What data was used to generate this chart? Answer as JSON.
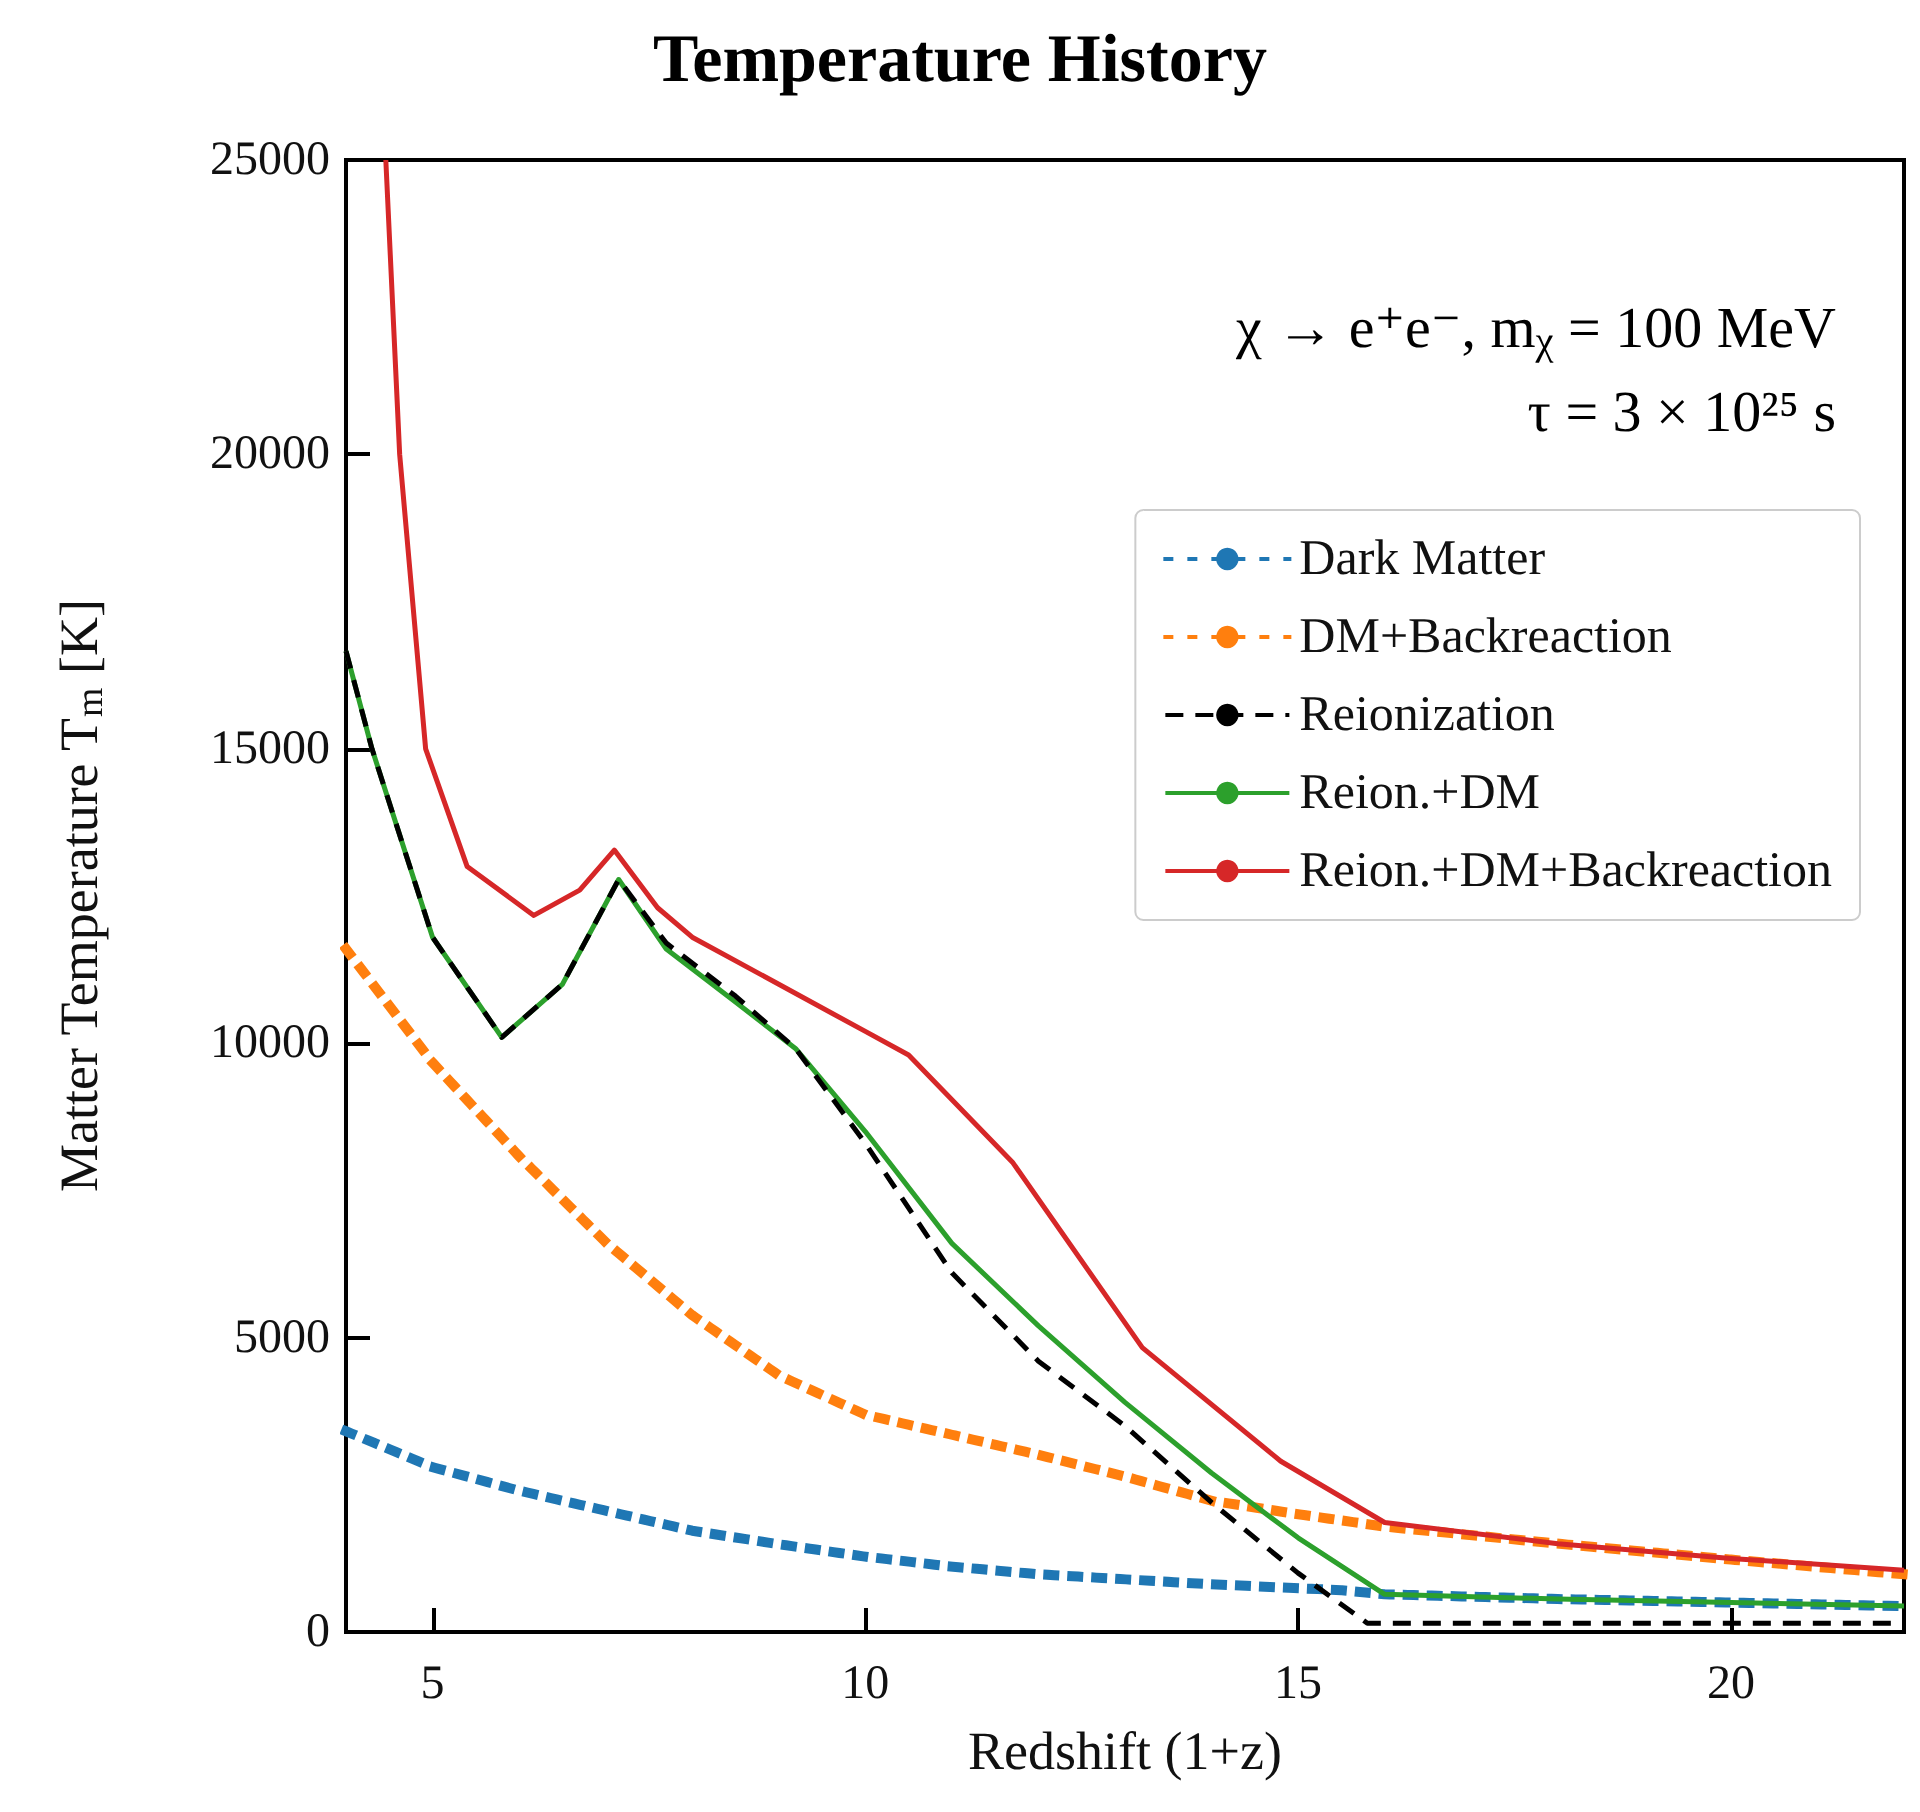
{
  "chart_data": {
    "type": "line",
    "title": "Temperature History",
    "xlabel": "Redshift (1+z)",
    "ylabel": "Matter Temperature T$_{m}$ [K]",
    "annotations": [
      "χ → e⁺e⁻, m$_{χ}$ = 100 MeV",
      "τ = 3 × 10²⁵ s"
    ],
    "xlim": [
      4,
      22
    ],
    "xticks": [
      5,
      10,
      15,
      20
    ],
    "ylim": [
      0,
      25000
    ],
    "yticks": [
      0,
      5000,
      10000,
      15000,
      20000,
      25000
    ],
    "grid": false,
    "legend": "top right",
    "marker": "none",
    "series": [
      {
        "name": "Dark Matter",
        "color": "#1f77b4",
        "line_style": "dotted",
        "x": [
          4,
          5,
          6,
          7,
          8,
          9,
          10,
          11,
          12,
          14,
          15.5,
          16,
          18,
          20,
          22
        ],
        "values": [
          3410,
          2800,
          2400,
          2060,
          1720,
          1490,
          1280,
          1110,
          980,
          810,
          710,
          640,
          560,
          500,
          440
        ]
      },
      {
        "name": "DM+Backreaction",
        "color": "#ff7f0e",
        "line_style": "dotted",
        "x": [
          4,
          5,
          6,
          7,
          8,
          9,
          10,
          11,
          12,
          13,
          14,
          15,
          16,
          18,
          20,
          22
        ],
        "values": [
          11600,
          9670,
          8080,
          6620,
          5380,
          4360,
          3690,
          3350,
          3010,
          2640,
          2230,
          2000,
          1790,
          1500,
          1230,
          980
        ]
      },
      {
        "name": "Reionization",
        "color": "#000000",
        "line_style": "dashed",
        "x": [
          4,
          4.3,
          5,
          5.8,
          6.5,
          7.15,
          7.7,
          8.5,
          9.2,
          10,
          11,
          12,
          13,
          14,
          15,
          15.8,
          18,
          22
        ],
        "values": [
          16660,
          15000,
          11800,
          10100,
          11000,
          12780,
          11700,
          10800,
          9900,
          8300,
          6100,
          4600,
          3500,
          2200,
          1000,
          150,
          150,
          150
        ]
      },
      {
        "name": "Reion.+DM",
        "color": "#2ca02c",
        "line_style": "solid",
        "x": [
          4,
          4.3,
          5,
          5.8,
          6.5,
          7.15,
          7.7,
          8.5,
          9.2,
          10,
          11,
          12,
          13,
          14,
          15,
          16,
          18,
          20,
          22
        ],
        "values": [
          16660,
          15000,
          11800,
          10100,
          11000,
          12780,
          11600,
          10700,
          9900,
          8500,
          6600,
          5200,
          3900,
          2700,
          1600,
          640,
          560,
          500,
          440
        ]
      },
      {
        "name": "Reion.+DM+Backreaction",
        "color": "#d62728",
        "line_style": "solid",
        "x": [
          4.46,
          4.62,
          4.92,
          5.4,
          6.17,
          6.7,
          7.1,
          7.6,
          8,
          9,
          10,
          10.5,
          11.7,
          13.2,
          14.8,
          16,
          18,
          20,
          22
        ],
        "values": [
          25000,
          20000,
          15000,
          13000,
          12170,
          12600,
          13280,
          12300,
          11800,
          11000,
          10200,
          9800,
          7980,
          4830,
          2900,
          1860,
          1500,
          1250,
          1050
        ]
      }
    ]
  }
}
